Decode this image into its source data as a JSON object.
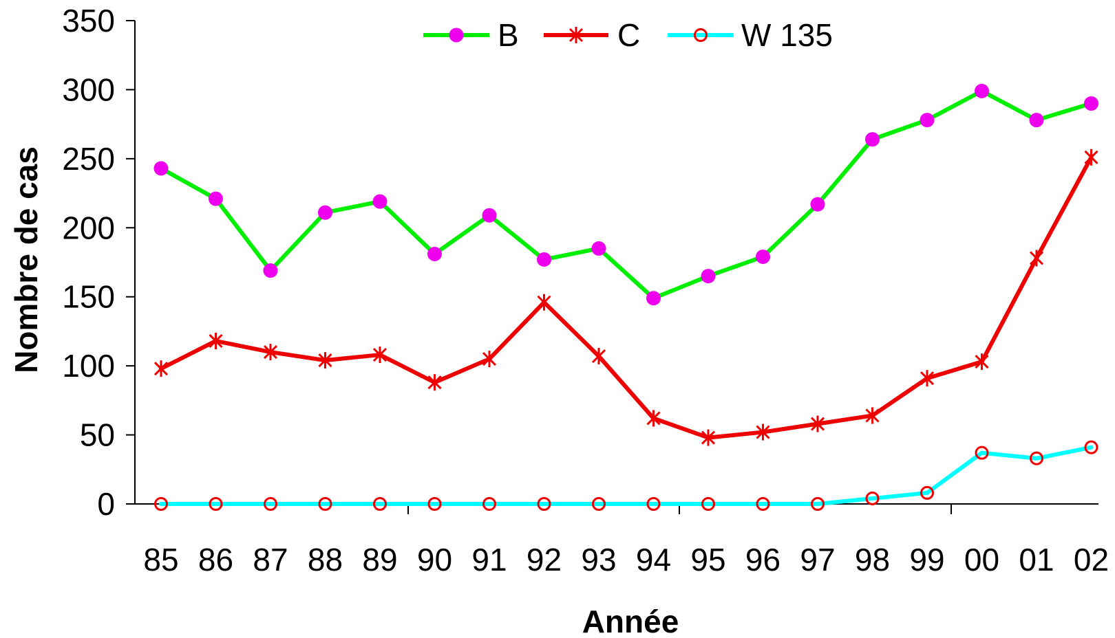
{
  "chart_data": {
    "type": "line",
    "xlabel": "Année",
    "ylabel": "Nombre de cas",
    "ylim": [
      0,
      350
    ],
    "yticks": [
      "0",
      "50",
      "100",
      "150",
      "200",
      "250",
      "300",
      "350"
    ],
    "categories": [
      "85",
      "86",
      "87",
      "88",
      "89",
      "90",
      "91",
      "92",
      "93",
      "94",
      "95",
      "96",
      "97",
      "98",
      "99",
      "00",
      "01",
      "02"
    ],
    "grid": false,
    "legend_position": "top",
    "series": [
      {
        "name": "B",
        "line_color": "#00ee00",
        "marker": "filled-circle",
        "marker_color": "#ee00ee",
        "values": [
          243,
          221,
          169,
          211,
          219,
          181,
          209,
          177,
          185,
          149,
          165,
          179,
          217,
          264,
          278,
          299,
          278,
          290
        ]
      },
      {
        "name": "C",
        "line_color": "#ee0000",
        "marker": "asterisk",
        "marker_color": "#ee0000",
        "values": [
          98,
          118,
          110,
          104,
          108,
          88,
          105,
          146,
          107,
          62,
          48,
          52,
          58,
          64,
          91,
          103,
          178,
          251
        ]
      },
      {
        "name": "W 135",
        "line_color": "#00ffff",
        "marker": "open-circle",
        "marker_color": "#ee0000",
        "values": [
          0,
          0,
          0,
          0,
          0,
          0,
          0,
          0,
          0,
          0,
          0,
          0,
          0,
          4,
          8,
          37,
          33,
          41
        ]
      }
    ]
  }
}
